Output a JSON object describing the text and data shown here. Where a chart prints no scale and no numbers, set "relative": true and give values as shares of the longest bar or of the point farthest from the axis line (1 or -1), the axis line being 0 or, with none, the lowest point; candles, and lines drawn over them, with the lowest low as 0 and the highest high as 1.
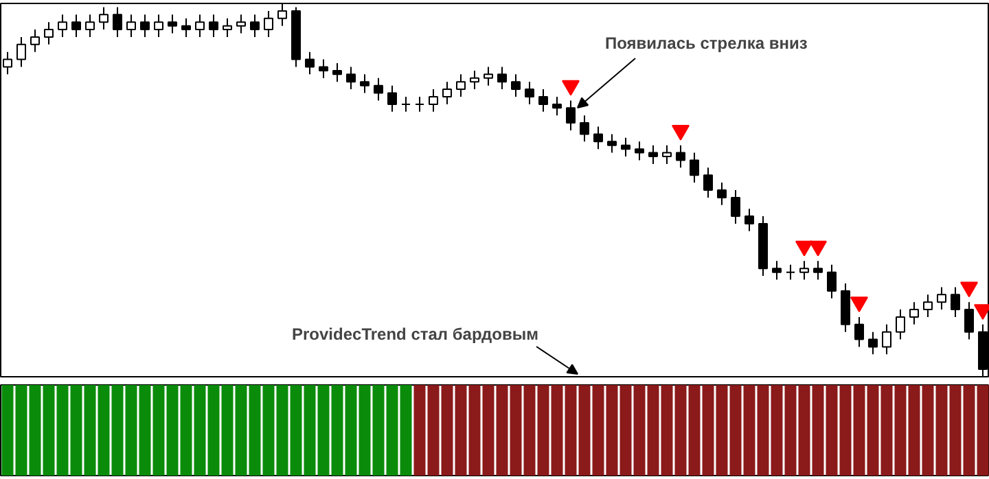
{
  "chart_data": [
    {
      "type": "candlestick",
      "relative": true,
      "grid": false,
      "tick_labels": false,
      "categories": [
        null,
        null,
        null,
        null,
        null,
        null,
        null,
        null,
        null,
        null,
        null,
        null,
        null,
        null,
        null,
        null,
        null,
        null,
        null,
        null,
        null,
        null,
        null,
        null,
        null,
        null,
        null,
        null,
        null,
        null,
        null,
        null,
        null,
        null,
        null,
        null,
        null,
        null,
        null,
        null,
        null,
        null,
        null,
        null,
        null,
        null,
        null,
        null,
        null,
        null,
        null,
        null,
        null,
        null,
        null,
        null,
        null,
        null,
        null,
        null,
        null,
        null,
        null,
        null,
        null,
        null,
        null,
        null,
        null,
        null,
        null,
        null
      ],
      "ohlc": [
        [
          0.83,
          0.87,
          0.81,
          0.85
        ],
        [
          0.85,
          0.91,
          0.83,
          0.89
        ],
        [
          0.89,
          0.93,
          0.87,
          0.91
        ],
        [
          0.91,
          0.95,
          0.89,
          0.93
        ],
        [
          0.93,
          0.97,
          0.91,
          0.95
        ],
        [
          0.95,
          0.97,
          0.91,
          0.93
        ],
        [
          0.93,
          0.97,
          0.91,
          0.95
        ],
        [
          0.95,
          0.99,
          0.93,
          0.97
        ],
        [
          0.97,
          0.99,
          0.91,
          0.93
        ],
        [
          0.93,
          0.97,
          0.91,
          0.95
        ],
        [
          0.95,
          0.97,
          0.91,
          0.93
        ],
        [
          0.93,
          0.97,
          0.91,
          0.95
        ],
        [
          0.95,
          0.97,
          0.92,
          0.94
        ],
        [
          0.94,
          0.96,
          0.91,
          0.93
        ],
        [
          0.93,
          0.97,
          0.91,
          0.95
        ],
        [
          0.95,
          0.97,
          0.91,
          0.93
        ],
        [
          0.93,
          0.96,
          0.91,
          0.94
        ],
        [
          0.94,
          0.97,
          0.92,
          0.95
        ],
        [
          0.95,
          0.97,
          0.91,
          0.93
        ],
        [
          0.93,
          0.98,
          0.91,
          0.96
        ],
        [
          0.96,
          1.0,
          0.94,
          0.98
        ],
        [
          0.98,
          0.99,
          0.83,
          0.85
        ],
        [
          0.85,
          0.87,
          0.81,
          0.83
        ],
        [
          0.83,
          0.85,
          0.8,
          0.82
        ],
        [
          0.82,
          0.84,
          0.79,
          0.81
        ],
        [
          0.81,
          0.83,
          0.77,
          0.79
        ],
        [
          0.79,
          0.81,
          0.76,
          0.78
        ],
        [
          0.78,
          0.8,
          0.74,
          0.76
        ],
        [
          0.76,
          0.78,
          0.71,
          0.73
        ],
        [
          0.73,
          0.75,
          0.71,
          0.73
        ],
        [
          0.73,
          0.75,
          0.71,
          0.73
        ],
        [
          0.73,
          0.77,
          0.71,
          0.75
        ],
        [
          0.75,
          0.79,
          0.73,
          0.77
        ],
        [
          0.77,
          0.81,
          0.75,
          0.79
        ],
        [
          0.79,
          0.82,
          0.77,
          0.8
        ],
        [
          0.8,
          0.83,
          0.78,
          0.81
        ],
        [
          0.81,
          0.83,
          0.77,
          0.79
        ],
        [
          0.79,
          0.81,
          0.75,
          0.77
        ],
        [
          0.77,
          0.79,
          0.73,
          0.75
        ],
        [
          0.75,
          0.77,
          0.71,
          0.73
        ],
        [
          0.73,
          0.75,
          0.7,
          0.72
        ],
        [
          0.72,
          0.74,
          0.66,
          0.68
        ],
        [
          0.68,
          0.7,
          0.63,
          0.65
        ],
        [
          0.65,
          0.67,
          0.61,
          0.63
        ],
        [
          0.63,
          0.65,
          0.6,
          0.62
        ],
        [
          0.62,
          0.64,
          0.59,
          0.61
        ],
        [
          0.61,
          0.63,
          0.58,
          0.6
        ],
        [
          0.6,
          0.62,
          0.57,
          0.59
        ],
        [
          0.59,
          0.62,
          0.57,
          0.6
        ],
        [
          0.6,
          0.62,
          0.56,
          0.58
        ],
        [
          0.58,
          0.6,
          0.52,
          0.54
        ],
        [
          0.54,
          0.56,
          0.48,
          0.5
        ],
        [
          0.5,
          0.52,
          0.46,
          0.48
        ],
        [
          0.48,
          0.5,
          0.41,
          0.43
        ],
        [
          0.43,
          0.45,
          0.39,
          0.41
        ],
        [
          0.41,
          0.43,
          0.27,
          0.29
        ],
        [
          0.29,
          0.31,
          0.26,
          0.28
        ],
        [
          0.28,
          0.3,
          0.26,
          0.28
        ],
        [
          0.28,
          0.31,
          0.26,
          0.29
        ],
        [
          0.29,
          0.31,
          0.26,
          0.28
        ],
        [
          0.28,
          0.3,
          0.21,
          0.23
        ],
        [
          0.23,
          0.25,
          0.12,
          0.14
        ],
        [
          0.14,
          0.16,
          0.08,
          0.1
        ],
        [
          0.1,
          0.12,
          0.06,
          0.08
        ],
        [
          0.08,
          0.14,
          0.06,
          0.12
        ],
        [
          0.12,
          0.18,
          0.1,
          0.16
        ],
        [
          0.16,
          0.2,
          0.14,
          0.18
        ],
        [
          0.18,
          0.22,
          0.16,
          0.2
        ],
        [
          0.2,
          0.24,
          0.18,
          0.22
        ],
        [
          0.22,
          0.24,
          0.16,
          0.18
        ],
        [
          0.18,
          0.2,
          0.1,
          0.12
        ],
        [
          0.12,
          0.14,
          0.0,
          0.02
        ]
      ],
      "series": [
        {
          "type": "scatter",
          "marker": "triangle",
          "color": "#ff0000",
          "values": [
            null,
            null,
            null,
            null,
            null,
            null,
            null,
            null,
            null,
            null,
            null,
            null,
            null,
            null,
            null,
            null,
            null,
            null,
            null,
            null,
            null,
            null,
            null,
            null,
            null,
            null,
            null,
            null,
            null,
            null,
            null,
            null,
            null,
            null,
            null,
            null,
            null,
            null,
            null,
            null,
            null,
            0.78,
            null,
            null,
            null,
            null,
            null,
            null,
            null,
            0.66,
            null,
            null,
            null,
            null,
            null,
            null,
            null,
            null,
            0.35,
            0.35,
            null,
            null,
            0.2,
            null,
            null,
            null,
            null,
            null,
            null,
            null,
            0.24,
            0.18
          ]
        }
      ],
      "annotations": [
        "Появилась стрелка вниз"
      ]
    },
    {
      "type": "bar",
      "relative": true,
      "grid": false,
      "tick_labels": false,
      "categories": [
        null,
        null,
        null,
        null,
        null,
        null,
        null,
        null,
        null,
        null,
        null,
        null,
        null,
        null,
        null,
        null,
        null,
        null,
        null,
        null,
        null,
        null,
        null,
        null,
        null,
        null,
        null,
        null,
        null,
        null,
        null,
        null,
        null,
        null,
        null,
        null,
        null,
        null,
        null,
        null,
        null,
        null,
        null,
        null,
        null,
        null,
        null,
        null,
        null,
        null,
        null,
        null,
        null,
        null,
        null,
        null,
        null,
        null,
        null,
        null,
        null,
        null,
        null,
        null,
        null,
        null,
        null,
        null,
        null,
        null,
        null,
        null
      ],
      "values": [
        1,
        1,
        1,
        1,
        1,
        1,
        1,
        1,
        1,
        1,
        1,
        1,
        1,
        1,
        1,
        1,
        1,
        1,
        1,
        1,
        1,
        1,
        1,
        1,
        1,
        1,
        1,
        1,
        1,
        1,
        1,
        1,
        1,
        1,
        1,
        1,
        1,
        1,
        1,
        1,
        1,
        1,
        1,
        1,
        1,
        1,
        1,
        1,
        1,
        1,
        1,
        1,
        1,
        1,
        1,
        1,
        1,
        1,
        1,
        1,
        1,
        1,
        1,
        1,
        1,
        1,
        1,
        1,
        1,
        1,
        1,
        1
      ],
      "colors": [
        "#0a8c0a",
        "#0a8c0a",
        "#0a8c0a",
        "#0a8c0a",
        "#0a8c0a",
        "#0a8c0a",
        "#0a8c0a",
        "#0a8c0a",
        "#0a8c0a",
        "#0a8c0a",
        "#0a8c0a",
        "#0a8c0a",
        "#0a8c0a",
        "#0a8c0a",
        "#0a8c0a",
        "#0a8c0a",
        "#0a8c0a",
        "#0a8c0a",
        "#0a8c0a",
        "#0a8c0a",
        "#0a8c0a",
        "#0a8c0a",
        "#0a8c0a",
        "#0a8c0a",
        "#0a8c0a",
        "#0a8c0a",
        "#0a8c0a",
        "#0a8c0a",
        "#0a8c0a",
        "#0a8c0a",
        "#8b1a1a",
        "#8b1a1a",
        "#8b1a1a",
        "#8b1a1a",
        "#8b1a1a",
        "#8b1a1a",
        "#8b1a1a",
        "#8b1a1a",
        "#8b1a1a",
        "#8b1a1a",
        "#8b1a1a",
        "#8b1a1a",
        "#8b1a1a",
        "#8b1a1a",
        "#8b1a1a",
        "#8b1a1a",
        "#8b1a1a",
        "#8b1a1a",
        "#8b1a1a",
        "#8b1a1a",
        "#8b1a1a",
        "#8b1a1a",
        "#8b1a1a",
        "#8b1a1a",
        "#8b1a1a",
        "#8b1a1a",
        "#8b1a1a",
        "#8b1a1a",
        "#8b1a1a",
        "#8b1a1a",
        "#8b1a1a",
        "#8b1a1a",
        "#8b1a1a",
        "#8b1a1a",
        "#8b1a1a",
        "#8b1a1a",
        "#8b1a1a",
        "#8b1a1a",
        "#8b1a1a",
        "#8b1a1a",
        "#8b1a1a",
        "#8b1a1a"
      ],
      "annotations": [
        "ProvidecTrend стал бардовым"
      ]
    }
  ]
}
